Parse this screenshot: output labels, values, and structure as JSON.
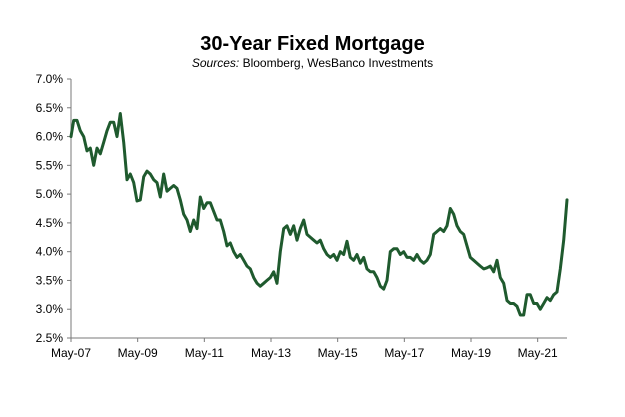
{
  "chart_data": {
    "type": "line",
    "title": "30-Year Fixed Mortgage",
    "subtitle_prefix": "Sources:",
    "subtitle_text": "Bloomberg, WesBanco Investments",
    "xlabel": "",
    "ylabel": "",
    "ylim": [
      2.5,
      7.0
    ],
    "y_ticks": [
      "2.5%",
      "3.0%",
      "3.5%",
      "4.0%",
      "4.5%",
      "5.0%",
      "5.5%",
      "6.0%",
      "6.5%",
      "7.0%"
    ],
    "x_ticks": [
      "May-07",
      "May-09",
      "May-11",
      "May-13",
      "May-15",
      "May-17",
      "May-19",
      "May-21"
    ],
    "grid": false,
    "line_color": "#1f5a2e",
    "series": [
      {
        "x": [
          2007.42,
          2007.5,
          2007.6,
          2007.7,
          2007.8,
          2007.9,
          2008.0,
          2008.1,
          2008.2,
          2008.3,
          2008.4,
          2008.5,
          2008.6,
          2008.7,
          2008.8,
          2008.9,
          2009.0,
          2009.1,
          2009.2,
          2009.3,
          2009.4,
          2009.5,
          2009.6,
          2009.7,
          2009.8,
          2009.9,
          2010.0,
          2010.1,
          2010.2,
          2010.3,
          2010.4,
          2010.5,
          2010.6,
          2010.7,
          2010.8,
          2010.9,
          2011.0,
          2011.1,
          2011.2,
          2011.3,
          2011.4,
          2011.5,
          2011.6,
          2011.7,
          2011.8,
          2011.9,
          2012.0,
          2012.1,
          2012.2,
          2012.3,
          2012.4,
          2012.5,
          2012.6,
          2012.7,
          2012.8,
          2012.9,
          2013.0,
          2013.1,
          2013.2,
          2013.3,
          2013.4,
          2013.5,
          2013.6,
          2013.7,
          2013.8,
          2013.9,
          2014.0,
          2014.1,
          2014.2,
          2014.3,
          2014.4,
          2014.5,
          2014.6,
          2014.7,
          2014.8,
          2014.9,
          2015.0,
          2015.1,
          2015.2,
          2015.3,
          2015.4,
          2015.5,
          2015.6,
          2015.7,
          2015.8,
          2015.9,
          2016.0,
          2016.1,
          2016.2,
          2016.3,
          2016.4,
          2016.5,
          2016.6,
          2016.7,
          2016.8,
          2016.9,
          2017.0,
          2017.1,
          2017.2,
          2017.3,
          2017.4,
          2017.5,
          2017.6,
          2017.7,
          2017.8,
          2017.9,
          2018.0,
          2018.1,
          2018.2,
          2018.3,
          2018.4,
          2018.5,
          2018.6,
          2018.7,
          2018.8,
          2018.9,
          2019.0,
          2019.1,
          2019.2,
          2019.3,
          2019.4,
          2019.5,
          2019.6,
          2019.7,
          2019.8,
          2019.9,
          2020.0,
          2020.1,
          2020.2,
          2020.3,
          2020.4,
          2020.5,
          2020.6,
          2020.7,
          2020.8,
          2020.9,
          2021.0,
          2021.1,
          2021.2,
          2021.3,
          2021.4,
          2021.5,
          2021.6,
          2021.7,
          2021.8,
          2021.9,
          2022.0,
          2022.1,
          2022.2,
          2022.3
        ],
        "values": [
          6.0,
          6.28,
          6.28,
          6.1,
          6.0,
          5.75,
          5.8,
          5.5,
          5.8,
          5.7,
          5.9,
          6.1,
          6.25,
          6.25,
          6.0,
          6.4,
          5.9,
          5.25,
          5.35,
          5.2,
          4.88,
          4.9,
          5.3,
          5.4,
          5.35,
          5.25,
          5.2,
          4.95,
          5.35,
          5.05,
          5.1,
          5.15,
          5.1,
          4.9,
          4.65,
          4.55,
          4.35,
          4.55,
          4.4,
          4.95,
          4.75,
          4.85,
          4.85,
          4.7,
          4.55,
          4.55,
          4.35,
          4.1,
          4.15,
          4.0,
          3.9,
          3.95,
          3.85,
          3.75,
          3.7,
          3.55,
          3.45,
          3.4,
          3.45,
          3.5,
          3.55,
          3.65,
          3.45,
          4.0,
          4.4,
          4.45,
          4.3,
          4.45,
          4.2,
          4.4,
          4.55,
          4.3,
          4.25,
          4.2,
          4.15,
          4.2,
          4.05,
          3.95,
          3.9,
          3.95,
          3.85,
          4.0,
          3.95,
          4.18,
          3.9,
          3.85,
          3.95,
          3.8,
          3.9,
          3.7,
          3.65,
          3.65,
          3.55,
          3.4,
          3.35,
          3.5,
          4.0,
          4.05,
          4.05,
          3.95,
          4.0,
          3.9,
          3.9,
          3.85,
          3.95,
          3.85,
          3.8,
          3.85,
          3.95,
          4.3,
          4.35,
          4.4,
          4.35,
          4.45,
          4.75,
          4.65,
          4.45,
          4.35,
          4.3,
          4.1,
          3.9,
          3.85,
          3.8,
          3.75,
          3.7,
          3.72,
          3.75,
          3.65,
          3.85,
          3.55,
          3.45,
          3.15,
          3.1,
          3.1,
          3.05,
          2.9,
          2.9,
          3.25,
          3.25,
          3.1,
          3.1,
          3.0,
          3.1,
          3.2,
          3.15,
          3.25,
          3.3,
          3.7,
          4.2,
          4.9
        ]
      }
    ]
  }
}
